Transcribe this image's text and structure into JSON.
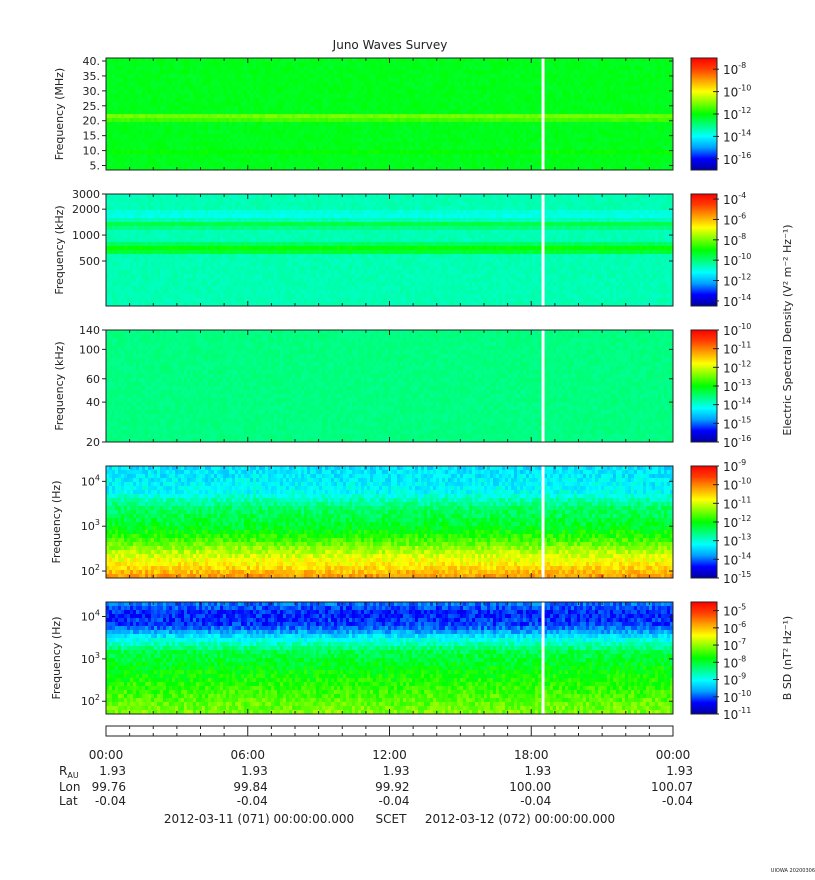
{
  "title": "Juno Waves Survey",
  "footer": {
    "start": "2012-03-11 (071) 00:00:00.000",
    "frame": "SCET",
    "end": "2012-03-12 (072) 00:00:00.000",
    "tag": "UIOWA 20200306"
  },
  "ephemeris": {
    "times": [
      "00:00",
      "06:00",
      "12:00",
      "18:00",
      "00:00"
    ],
    "rows": [
      {
        "label": "R",
        "sub": "AU",
        "values": [
          "1.93",
          "1.93",
          "1.93",
          "1.93",
          "1.93"
        ]
      },
      {
        "label": "Lon",
        "values": [
          "99.76",
          "99.84",
          "99.92",
          "100.00",
          "100.07"
        ]
      },
      {
        "label": "Lat",
        "values": [
          "-0.04",
          "-0.04",
          "-0.04",
          "-0.04",
          "-0.04"
        ]
      }
    ]
  },
  "colors": {
    "colormap": [
      "#0000a0",
      "#0000ff",
      "#00a0ff",
      "#00ffff",
      "#00ff80",
      "#00ff00",
      "#80ff00",
      "#ffff00",
      "#ffa000",
      "#ff4000",
      "#ff0000"
    ],
    "gap": "#ffffff",
    "frame": "#222222"
  },
  "chart_data": [
    {
      "type": "heatmap",
      "ylabel": "Frequency (MHz)",
      "yscale": "linear",
      "ylim": [
        3.5,
        41
      ],
      "yticks": [
        {
          "v": 5,
          "label": "5."
        },
        {
          "v": 10,
          "label": "10."
        },
        {
          "v": 15,
          "label": "15."
        },
        {
          "v": 20,
          "label": "20."
        },
        {
          "v": 25,
          "label": "25."
        },
        {
          "v": 30,
          "label": "30."
        },
        {
          "v": 35,
          "label": "35."
        },
        {
          "v": 40,
          "label": "40."
        }
      ],
      "xlim_hours": [
        0,
        24
      ],
      "data_gap_hours": 18.5,
      "background_level": 0.48,
      "bands": [
        {
          "center": 21,
          "width": 1.0,
          "level": 0.64
        },
        {
          "center": 9,
          "width": 0.8,
          "level": 0.52
        }
      ],
      "colorbar": {
        "label": "",
        "log_range": [
          -17,
          -7
        ],
        "ticks": [
          {
            "exp": "-8",
            "v": -8
          },
          {
            "exp": "-10",
            "v": -10
          },
          {
            "exp": "-12",
            "v": -12
          },
          {
            "exp": "-14",
            "v": -14
          },
          {
            "exp": "-16",
            "v": -16
          }
        ]
      }
    },
    {
      "type": "heatmap",
      "ylabel": "Frequency (kHz)",
      "yscale": "log",
      "ylim": [
        150,
        3000
      ],
      "yticks": [
        {
          "v": 500,
          "label": "500"
        },
        {
          "v": 1000,
          "label": "1000"
        },
        {
          "v": 2000,
          "label": "2000"
        },
        {
          "v": 3000,
          "label": "3000"
        }
      ],
      "xlim_hours": [
        0,
        24
      ],
      "data_gap_hours": 18.5,
      "background_level": 0.36,
      "bands": [
        {
          "center": 700,
          "width": 120,
          "level": 0.5
        },
        {
          "center": 1300,
          "width": 120,
          "level": 0.46
        },
        {
          "center": 1750,
          "width": 150,
          "level": 0.3
        }
      ],
      "colorbar": {
        "label": "Electric Spectral Density (V² m⁻² Hz⁻¹)",
        "log_range": [
          -14.5,
          -3.5
        ],
        "ticks": [
          {
            "exp": "-4",
            "v": -4
          },
          {
            "exp": "-6",
            "v": -6
          },
          {
            "exp": "-8",
            "v": -8
          },
          {
            "exp": "-10",
            "v": -10
          },
          {
            "exp": "-12",
            "v": -12
          },
          {
            "exp": "-14",
            "v": -14
          }
        ]
      }
    },
    {
      "type": "heatmap",
      "ylabel": "Frequency (kHz)",
      "yscale": "log",
      "ylim": [
        20,
        140
      ],
      "yticks": [
        {
          "v": 20,
          "label": "20"
        },
        {
          "v": 40,
          "label": "40"
        },
        {
          "v": 60,
          "label": "60"
        },
        {
          "v": 100,
          "label": "100"
        },
        {
          "v": 140,
          "label": "140"
        }
      ],
      "xlim_hours": [
        0,
        24
      ],
      "data_gap_hours": 18.5,
      "background_level": 0.4,
      "bands": [],
      "colorbar": {
        "label": "",
        "log_range": [
          -16,
          -10
        ],
        "ticks": [
          {
            "exp": "-10",
            "v": -10
          },
          {
            "exp": "-11",
            "v": -11
          },
          {
            "exp": "-12",
            "v": -12
          },
          {
            "exp": "-13",
            "v": -13
          },
          {
            "exp": "-14",
            "v": -14
          },
          {
            "exp": "-15",
            "v": -15
          },
          {
            "exp": "-16",
            "v": -16
          }
        ]
      }
    },
    {
      "type": "heatmap",
      "ylabel": "Frequency (Hz)",
      "yscale": "log",
      "ylim": [
        70,
        22000
      ],
      "yticks": [
        {
          "v": 100,
          "label": "10",
          "exp": "2"
        },
        {
          "v": 1000,
          "label": "10",
          "exp": "3"
        },
        {
          "v": 10000,
          "label": "10",
          "exp": "4"
        }
      ],
      "xlim_hours": [
        0,
        24
      ],
      "data_gap_hours": 18.5,
      "profile": [
        [
          70,
          0.82
        ],
        [
          110,
          0.75
        ],
        [
          250,
          0.65
        ],
        [
          500,
          0.55
        ],
        [
          1000,
          0.47
        ],
        [
          2500,
          0.42
        ],
        [
          6000,
          0.3
        ],
        [
          22000,
          0.27
        ]
      ],
      "colorbar": {
        "label": "",
        "log_range": [
          -15,
          -9
        ],
        "ticks": [
          {
            "exp": "-9",
            "v": -9
          },
          {
            "exp": "-10",
            "v": -10
          },
          {
            "exp": "-11",
            "v": -11
          },
          {
            "exp": "-12",
            "v": -12
          },
          {
            "exp": "-13",
            "v": -13
          },
          {
            "exp": "-14",
            "v": -14
          },
          {
            "exp": "-15",
            "v": -15
          }
        ]
      }
    },
    {
      "type": "heatmap",
      "ylabel": "Frequency (Hz)",
      "yscale": "log",
      "ylim": [
        50,
        22000
      ],
      "yticks": [
        {
          "v": 100,
          "label": "10",
          "exp": "2"
        },
        {
          "v": 1000,
          "label": "10",
          "exp": "3"
        },
        {
          "v": 10000,
          "label": "10",
          "exp": "4"
        }
      ],
      "xlim_hours": [
        0,
        24
      ],
      "data_gap_hours": 18.5,
      "profile": [
        [
          50,
          0.6
        ],
        [
          150,
          0.55
        ],
        [
          500,
          0.5
        ],
        [
          1500,
          0.44
        ],
        [
          3000,
          0.3
        ],
        [
          6000,
          0.14
        ],
        [
          12000,
          0.12
        ],
        [
          22000,
          0.18
        ]
      ],
      "colorbar": {
        "label": "B SD (nT² Hz⁻¹)",
        "log_range": [
          -11,
          -4.5
        ],
        "ticks": [
          {
            "exp": "-5",
            "v": -5
          },
          {
            "exp": "-6",
            "v": -6
          },
          {
            "exp": "-7",
            "v": -7
          },
          {
            "exp": "-8",
            "v": -8
          },
          {
            "exp": "-9",
            "v": -9
          },
          {
            "exp": "-10",
            "v": -10
          },
          {
            "exp": "-11",
            "v": -11
          }
        ]
      }
    }
  ]
}
